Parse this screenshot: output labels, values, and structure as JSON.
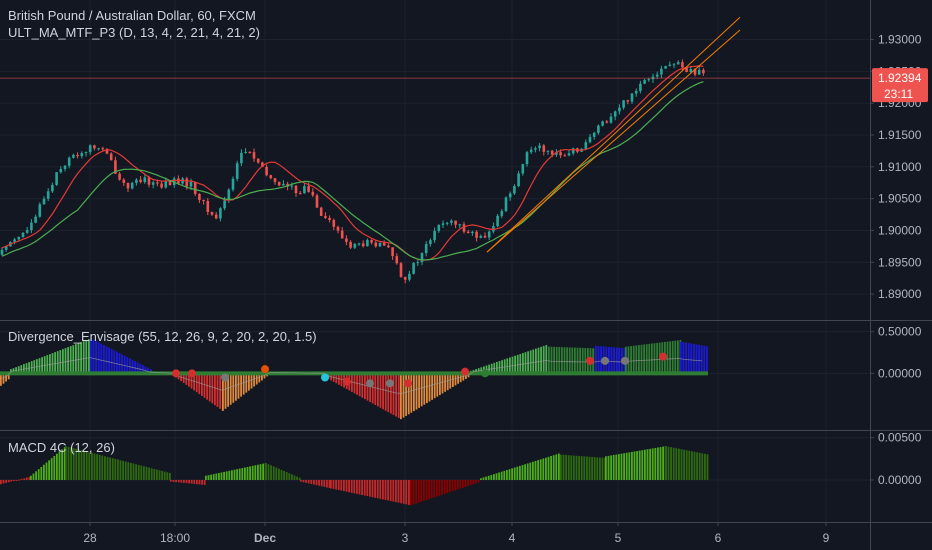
{
  "colors": {
    "background": "#131722",
    "grid": "#1e222d",
    "axis_text": "#b2b5be",
    "separator": "#434651",
    "up_candle": "#26a69a",
    "down_candle": "#ef5350",
    "ma_fast": "#4caf50",
    "ma_slow": "#e53935",
    "trendline": "#f57c00",
    "price_tag": "#ef5350",
    "hist_green": "#2e7d32",
    "hist_lime": "#4caf50",
    "hist_blue": "#1a1adb",
    "hist_red": "#d32f2f",
    "hist_orange": "#e08a3c",
    "macd_bright": "#4caf1a",
    "macd_dark": "#2e6b10",
    "macd_red": "#8b0000",
    "macd_bright_red": "#c62828"
  },
  "chart_data": [
    {
      "type": "candlestick",
      "title": "British Pound / Australian Dollar, 60, FXCM",
      "indicator_label": "ULT_MA_MTF_P3 (D, 13, 4, 2, 21, 4, 21, 2)",
      "ylim": [
        1.8875,
        1.9315
      ],
      "y_ticks": [
        "1.93000",
        "1.92500",
        "1.92000",
        "1.91500",
        "1.91000",
        "1.90500",
        "1.90000",
        "1.89500",
        "1.89000"
      ],
      "last_price": "1.92394",
      "countdown": "23:11",
      "x_labels": [
        "28",
        "18:00",
        "Dec",
        "3",
        "4",
        "5",
        "6",
        "9"
      ],
      "close_path": [
        [
          0,
          1.8962
        ],
        [
          12,
          1.8988
        ],
        [
          24,
          1.8995
        ],
        [
          36,
          1.9018
        ],
        [
          42,
          1.905
        ],
        [
          50,
          1.9065
        ],
        [
          58,
          1.9098
        ],
        [
          65,
          1.9105
        ],
        [
          72,
          1.9115
        ],
        [
          80,
          1.9122
        ],
        [
          88,
          1.9128
        ],
        [
          96,
          1.9132
        ],
        [
          104,
          1.9125
        ],
        [
          112,
          1.9105
        ],
        [
          120,
          1.908
        ],
        [
          128,
          1.907
        ],
        [
          136,
          1.9074
        ],
        [
          144,
          1.9078
        ],
        [
          152,
          1.9076
        ],
        [
          160,
          1.9072
        ],
        [
          168,
          1.9074
        ],
        [
          176,
          1.9078
        ],
        [
          184,
          1.9076
        ],
        [
          192,
          1.907
        ],
        [
          200,
          1.905
        ],
        [
          208,
          1.903
        ],
        [
          216,
          1.902
        ],
        [
          224,
          1.9045
        ],
        [
          232,
          1.908
        ],
        [
          240,
          1.912
        ],
        [
          248,
          1.9125
        ],
        [
          256,
          1.911
        ],
        [
          264,
          1.909
        ],
        [
          272,
          1.908
        ],
        [
          280,
          1.9074
        ],
        [
          288,
          1.9068
        ],
        [
          296,
          1.9062
        ],
        [
          304,
          1.9066
        ],
        [
          312,
          1.9058
        ],
        [
          320,
          1.903
        ],
        [
          328,
          1.902
        ],
        [
          336,
          1.9
        ],
        [
          344,
          1.8985
        ],
        [
          352,
          1.8975
        ],
        [
          360,
          1.8978
        ],
        [
          368,
          1.898
        ],
        [
          376,
          1.8976
        ],
        [
          384,
          1.8975
        ],
        [
          392,
          1.8965
        ],
        [
          400,
          1.8935
        ],
        [
          404,
          1.8925
        ],
        [
          412,
          1.894
        ],
        [
          420,
          1.8958
        ],
        [
          428,
          1.898
        ],
        [
          436,
          1.9
        ],
        [
          444,
          1.9015
        ],
        [
          452,
          1.901
        ],
        [
          460,
          1.9005
        ],
        [
          468,
          1.9002
        ],
        [
          476,
          1.899
        ],
        [
          484,
          1.8985
        ],
        [
          492,
          1.9
        ],
        [
          500,
          1.903
        ],
        [
          508,
          1.9055
        ],
        [
          516,
          1.908
        ],
        [
          524,
          1.911
        ],
        [
          532,
          1.913
        ],
        [
          540,
          1.9135
        ],
        [
          548,
          1.912
        ],
        [
          556,
          1.9128
        ],
        [
          564,
          1.9112
        ],
        [
          572,
          1.9122
        ],
        [
          580,
          1.9132
        ],
        [
          588,
          1.914
        ],
        [
          596,
          1.9155
        ],
        [
          604,
          1.9172
        ],
        [
          612,
          1.918
        ],
        [
          620,
          1.9195
        ],
        [
          628,
          1.9208
        ],
        [
          636,
          1.9222
        ],
        [
          644,
          1.9238
        ],
        [
          652,
          1.9246
        ],
        [
          660,
          1.9252
        ],
        [
          668,
          1.926
        ],
        [
          676,
          1.9262
        ],
        [
          684,
          1.9256
        ],
        [
          692,
          1.925
        ],
        [
          700,
          1.9246
        ],
        [
          706,
          1.92394
        ]
      ],
      "trendlines": [
        {
          "from": [
            487,
            1.8966
          ],
          "to": [
            740,
            1.9335
          ]
        },
        {
          "from": [
            487,
            1.8966
          ],
          "to": [
            740,
            1.9315
          ]
        }
      ],
      "ma_series": [
        {
          "lag": 3,
          "offset": 0.0003
        },
        {
          "lag": 6,
          "offset": -0.001
        }
      ]
    },
    {
      "type": "histogram",
      "indicator_label": "Divergence_Envisage (55, 12, 26, 9, 2, 20, 2, 20, 1.5)",
      "ylim": [
        -0.62,
        0.58
      ],
      "y_ticks": [
        "0.50000",
        "0.00000"
      ],
      "segments": [
        {
          "start": 0,
          "end": 10,
          "from": -0.15,
          "to": -0.05,
          "color": "orange"
        },
        {
          "start": 10,
          "end": 90,
          "from": 0.05,
          "to": 0.42,
          "color": "lime"
        },
        {
          "start": 90,
          "end": 150,
          "from": 0.42,
          "to": 0.05,
          "color": "blue"
        },
        {
          "start": 150,
          "end": 175,
          "from": 0.03,
          "to": 0.0,
          "color": "green"
        },
        {
          "start": 175,
          "end": 222,
          "from": -0.05,
          "to": -0.45,
          "color": "red"
        },
        {
          "start": 222,
          "end": 268,
          "from": -0.45,
          "to": -0.02,
          "color": "orange"
        },
        {
          "start": 268,
          "end": 325,
          "from": 0.02,
          "to": 0.0,
          "color": "green"
        },
        {
          "start": 325,
          "end": 400,
          "from": -0.05,
          "to": -0.55,
          "color": "red"
        },
        {
          "start": 400,
          "end": 470,
          "from": -0.55,
          "to": -0.03,
          "color": "orange"
        },
        {
          "start": 470,
          "end": 548,
          "from": 0.03,
          "to": 0.35,
          "color": "lime"
        },
        {
          "start": 548,
          "end": 595,
          "from": 0.32,
          "to": 0.3,
          "color": "green"
        },
        {
          "start": 595,
          "end": 625,
          "from": 0.33,
          "to": 0.3,
          "color": "blue"
        },
        {
          "start": 625,
          "end": 680,
          "from": 0.32,
          "to": 0.4,
          "color": "green"
        },
        {
          "start": 680,
          "end": 708,
          "from": 0.38,
          "to": 0.32,
          "color": "blue"
        }
      ],
      "dots": [
        {
          "x": 176,
          "y": 0.0,
          "color": "#d32f2f"
        },
        {
          "x": 192,
          "y": 0.0,
          "color": "#d32f2f"
        },
        {
          "x": 225,
          "y": -0.05,
          "color": "#777777"
        },
        {
          "x": 265,
          "y": 0.05,
          "color": "#e65100"
        },
        {
          "x": 325,
          "y": -0.05,
          "color": "#26c6da"
        },
        {
          "x": 347,
          "y": -0.1,
          "color": "#d32f2f"
        },
        {
          "x": 370,
          "y": -0.12,
          "color": "#777777"
        },
        {
          "x": 390,
          "y": -0.12,
          "color": "#777777"
        },
        {
          "x": 408,
          "y": -0.12,
          "color": "#d32f2f"
        },
        {
          "x": 465,
          "y": 0.02,
          "color": "#d32f2f"
        },
        {
          "x": 485,
          "y": 0.0,
          "color": "#2e7d32"
        },
        {
          "x": 590,
          "y": 0.15,
          "color": "#d32f2f"
        },
        {
          "x": 605,
          "y": 0.15,
          "color": "#777777"
        },
        {
          "x": 625,
          "y": 0.15,
          "color": "#777777"
        },
        {
          "x": 663,
          "y": 0.2,
          "color": "#d32f2f"
        }
      ]
    },
    {
      "type": "histogram",
      "indicator_label": "MACD 4C (12, 26)",
      "ylim": [
        -0.0045,
        0.0052
      ],
      "y_ticks": [
        "0.00500",
        "0.00000"
      ],
      "segments": [
        {
          "start": 0,
          "end": 30,
          "from": -0.0005,
          "to": 0.0004,
          "color": "bright_red"
        },
        {
          "start": 30,
          "end": 65,
          "from": 0.0005,
          "to": 0.004,
          "color": "bright"
        },
        {
          "start": 65,
          "end": 170,
          "from": 0.004,
          "to": 0.0008,
          "color": "dark"
        },
        {
          "start": 170,
          "end": 205,
          "from": -0.0002,
          "to": -0.0006,
          "color": "bright_red"
        },
        {
          "start": 205,
          "end": 265,
          "from": 0.0005,
          "to": 0.002,
          "color": "bright"
        },
        {
          "start": 265,
          "end": 300,
          "from": 0.002,
          "to": 0.0002,
          "color": "dark"
        },
        {
          "start": 300,
          "end": 330,
          "from": -0.0002,
          "to": -0.001,
          "color": "bright_red"
        },
        {
          "start": 330,
          "end": 410,
          "from": -0.001,
          "to": -0.003,
          "color": "bright_red"
        },
        {
          "start": 410,
          "end": 480,
          "from": -0.003,
          "to": -0.0002,
          "color": "red"
        },
        {
          "start": 480,
          "end": 560,
          "from": 0.0002,
          "to": 0.0032,
          "color": "bright"
        },
        {
          "start": 560,
          "end": 605,
          "from": 0.003,
          "to": 0.0026,
          "color": "dark"
        },
        {
          "start": 605,
          "end": 665,
          "from": 0.0028,
          "to": 0.004,
          "color": "bright"
        },
        {
          "start": 665,
          "end": 708,
          "from": 0.004,
          "to": 0.003,
          "color": "dark"
        }
      ]
    }
  ]
}
